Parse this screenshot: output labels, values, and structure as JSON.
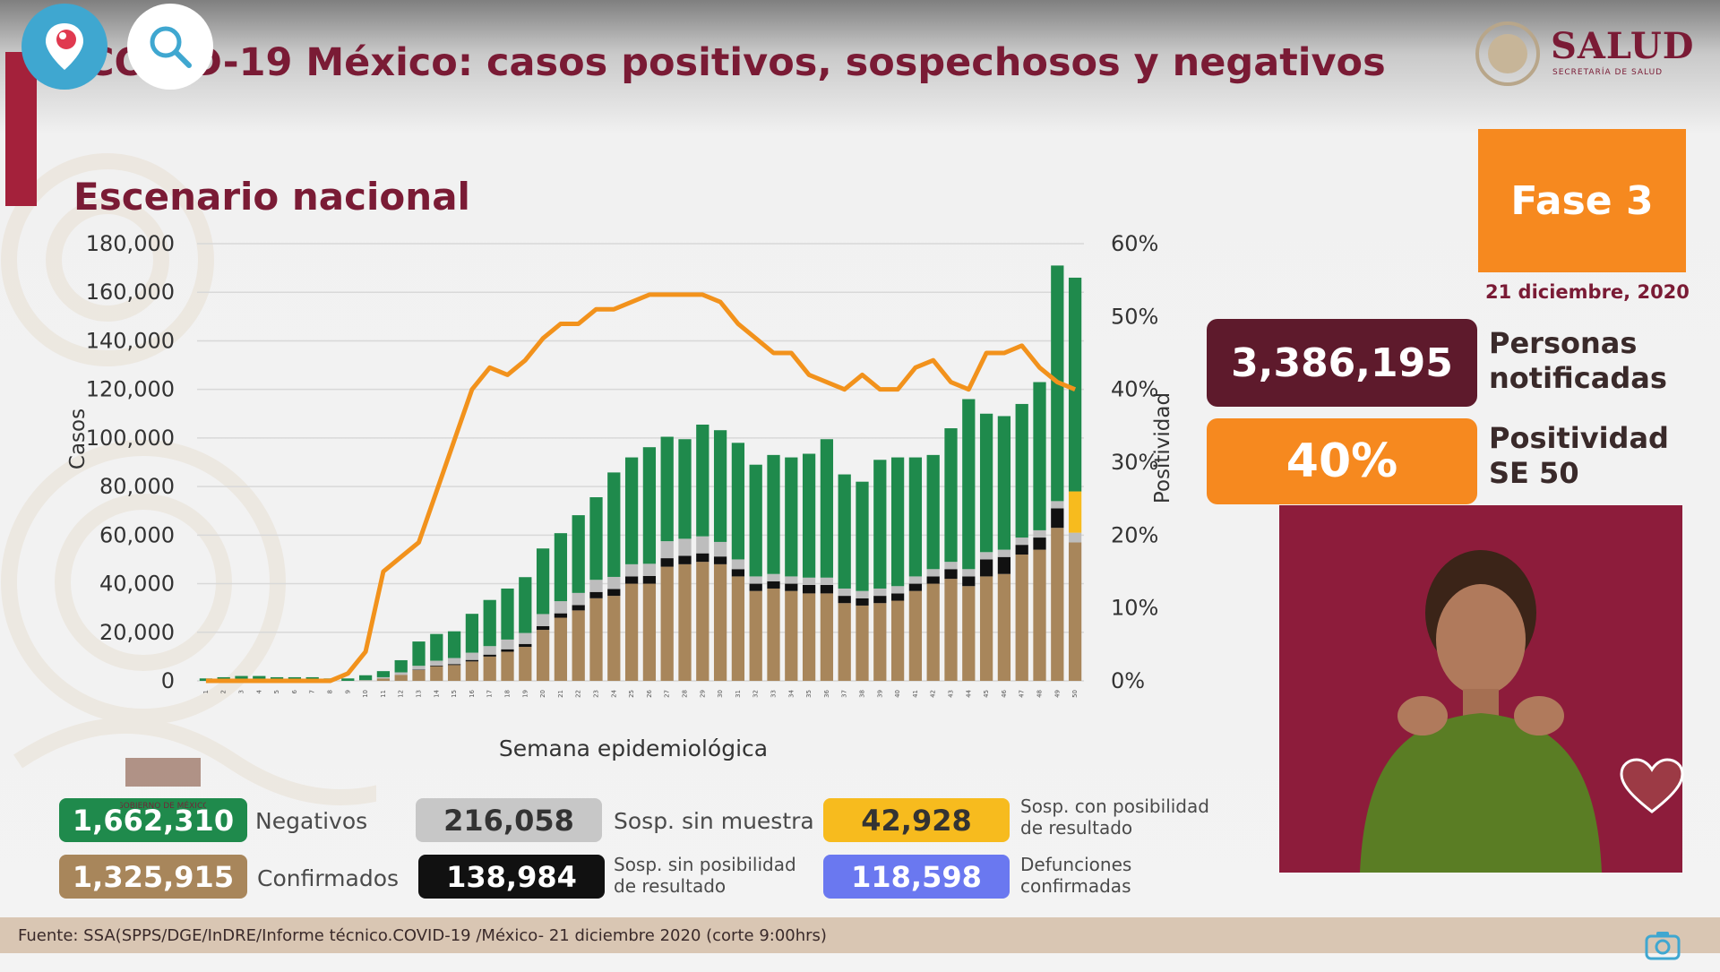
{
  "header": {
    "title": "COVID-19 México: casos positivos, sospechosos y negativos",
    "logo_text": "SALUD",
    "logo_subtext": "SECRETARÍA DE SALUD"
  },
  "overlay_buttons": {
    "periscope": "periscope-logo-icon",
    "search": "search-icon"
  },
  "subtitle": "Escenario nacional",
  "phase": {
    "label": "Fase 3",
    "date": "21 diciembre, 2020"
  },
  "kpis": {
    "personas_value": "3,386,195",
    "personas_label_1": "Personas",
    "personas_label_2": "notificadas",
    "positividad_value": "40%",
    "positividad_label_1": "Positividad",
    "positividad_label_2": "SE 50"
  },
  "legend": {
    "negativos": {
      "value": "1,662,310",
      "label": "Negativos"
    },
    "confirmados": {
      "value": "1,325,915",
      "label": "Confirmados"
    },
    "sin_muestra": {
      "value": "216,058",
      "label": "Sosp. sin muestra"
    },
    "sin_posibilidad": {
      "value": "138,984",
      "label_1": "Sosp. sin posibilidad",
      "label_2": "de resultado"
    },
    "con_posibilidad": {
      "value": "42,928",
      "label_1": "Sosp. con posibilidad",
      "label_2": "de resultado"
    },
    "defunciones": {
      "value": "118,598",
      "label_1": "Defunciones",
      "label_2": "confirmadas"
    }
  },
  "gob_logo_text": "GOBIERNO DE MÉXICO",
  "footer": "Fuente: SSA(SPPS/DGE/InDRE/Informe técnico.COVID-19 /México- 21 diciembre 2020 (corte 9:00hrs)",
  "colors": {
    "confirmados": "#a8865b",
    "sin_posibilidad": "#111111",
    "sin_muestra": "#bdbdbd",
    "negativos": "#1f8a4c",
    "con_posibilidad": "#f7bb1e",
    "positividad": "#f2921c",
    "defunciones": "#6a78f0"
  },
  "chart_data": {
    "type": "bar",
    "stacked": true,
    "xlabel": "Semana epidemiológica",
    "ylabel": "Casos",
    "y2label": "Positividad",
    "ylim": [
      0,
      180000
    ],
    "y2lim": [
      0,
      60
    ],
    "yticks": [
      "0",
      "20,000",
      "40,000",
      "60,000",
      "80,000",
      "100,000",
      "120,000",
      "140,000",
      "160,000",
      "180,000"
    ],
    "y2ticks": [
      "0%",
      "10%",
      "20%",
      "30%",
      "40%",
      "50%",
      "60%"
    ],
    "categories": [
      "1",
      "2",
      "3",
      "4",
      "5",
      "6",
      "7",
      "8",
      "9",
      "10",
      "11",
      "12",
      "13",
      "14",
      "15",
      "16",
      "17",
      "18",
      "19",
      "20",
      "21",
      "22",
      "23",
      "24",
      "25",
      "26",
      "27",
      "28",
      "29",
      "30",
      "31",
      "32",
      "33",
      "34",
      "35",
      "36",
      "37",
      "38",
      "39",
      "40",
      "41",
      "42",
      "43",
      "44",
      "45",
      "46",
      "47",
      "48",
      "49",
      "50"
    ],
    "series": [
      {
        "key": "confirmados",
        "values": [
          0,
          0,
          0,
          0,
          0,
          0,
          0,
          0,
          0,
          100,
          1000,
          2500,
          4500,
          6000,
          6500,
          8000,
          10000,
          12000,
          14000,
          21000,
          26000,
          29000,
          34000,
          35000,
          40000,
          40000,
          47000,
          48000,
          49000,
          48000,
          43000,
          37000,
          38000,
          37000,
          36000,
          36000,
          32000,
          31000,
          32000,
          33000,
          37000,
          40000,
          42000,
          39000,
          43000,
          44000,
          52000,
          54000,
          63000,
          57000
        ]
      },
      {
        "key": "sin_posibilidad",
        "values": [
          0,
          0,
          0,
          0,
          0,
          0,
          0,
          0,
          0,
          0,
          0,
          0,
          200,
          300,
          400,
          600,
          800,
          1000,
          1200,
          1500,
          1800,
          2200,
          2600,
          2800,
          3000,
          3200,
          3500,
          3500,
          3500,
          3200,
          3000,
          3000,
          3000,
          3000,
          3500,
          3500,
          3000,
          3000,
          3000,
          3000,
          3000,
          3000,
          4000,
          4000,
          7000,
          7000,
          4000,
          5000,
          8000,
          0
        ]
      },
      {
        "key": "sin_muestra",
        "values": [
          0,
          0,
          0,
          0,
          0,
          0,
          0,
          0,
          0,
          200,
          500,
          1000,
          1500,
          2000,
          2500,
          3000,
          3500,
          4000,
          4500,
          5000,
          5000,
          5000,
          5000,
          5000,
          5000,
          5000,
          7000,
          7000,
          7000,
          6000,
          4000,
          3000,
          3000,
          3000,
          3000,
          3000,
          3000,
          3000,
          3000,
          3000,
          3000,
          3000,
          3000,
          3000,
          3000,
          3000,
          3000,
          3000,
          3000,
          4000
        ]
      },
      {
        "key": "con_posibilidad",
        "values": [
          0,
          0,
          0,
          0,
          0,
          0,
          0,
          0,
          0,
          0,
          0,
          0,
          0,
          0,
          0,
          0,
          0,
          0,
          0,
          0,
          0,
          0,
          0,
          0,
          0,
          0,
          0,
          0,
          0,
          0,
          0,
          0,
          0,
          0,
          0,
          0,
          0,
          0,
          0,
          0,
          0,
          0,
          0,
          0,
          0,
          0,
          0,
          0,
          0,
          17000
        ]
      },
      {
        "key": "negativos",
        "values": [
          1000,
          1500,
          2000,
          2000,
          1500,
          1500,
          1500,
          1000,
          1000,
          2000,
          2500,
          5000,
          10000,
          11000,
          11000,
          16000,
          19000,
          21000,
          23000,
          27000,
          28000,
          32000,
          34000,
          43000,
          44000,
          48000,
          43000,
          41000,
          46000,
          46000,
          48000,
          46000,
          49000,
          49000,
          51000,
          57000,
          47000,
          45000,
          53000,
          53000,
          49000,
          47000,
          55000,
          70000,
          57000,
          55000,
          55000,
          61000,
          97000,
          88000
        ]
      }
    ],
    "positividad": {
      "name": "Positividad",
      "values": [
        0,
        0,
        0,
        0,
        0,
        0,
        0,
        0,
        1,
        4,
        15,
        17,
        19,
        26,
        33,
        40,
        43,
        42,
        44,
        47,
        49,
        49,
        51,
        51,
        52,
        53,
        53,
        53,
        53,
        52,
        49,
        47,
        45,
        45,
        42,
        41,
        40,
        42,
        40,
        40,
        43,
        44,
        41,
        40,
        45,
        45,
        46,
        43,
        41,
        40
      ]
    }
  }
}
